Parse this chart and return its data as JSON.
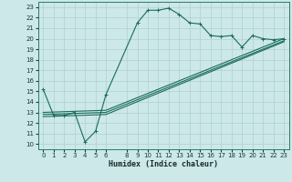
{
  "xlabel": "Humidex (Indice chaleur)",
  "xlim": [
    -0.5,
    23.5
  ],
  "ylim": [
    9.5,
    23.5
  ],
  "yticks": [
    10,
    11,
    12,
    13,
    14,
    15,
    16,
    17,
    18,
    19,
    20,
    21,
    22,
    23
  ],
  "xticks": [
    0,
    1,
    2,
    3,
    4,
    5,
    6,
    8,
    9,
    10,
    11,
    12,
    13,
    14,
    15,
    16,
    17,
    18,
    19,
    20,
    21,
    22,
    23
  ],
  "bg_color": "#cce8e8",
  "line_color": "#1a6b5a",
  "grid_color": "#b0d0d0",
  "lines": [
    {
      "x": [
        0,
        1,
        2,
        3,
        4,
        5,
        6,
        9,
        10,
        11,
        12,
        13,
        14,
        15,
        16,
        17,
        18,
        19,
        20,
        21,
        22,
        23
      ],
      "y": [
        15.2,
        12.7,
        12.7,
        13.0,
        10.2,
        11.2,
        14.7,
        21.5,
        22.7,
        22.7,
        22.9,
        22.3,
        21.5,
        21.4,
        20.3,
        20.2,
        20.3,
        19.2,
        20.3,
        20.0,
        19.9,
        20.0
      ]
    },
    {
      "x": [
        0,
        6,
        23
      ],
      "y": [
        13.0,
        13.2,
        20.0
      ],
      "has_markers": false
    },
    {
      "x": [
        0,
        6,
        23
      ],
      "y": [
        12.8,
        13.0,
        19.8
      ],
      "has_markers": false
    },
    {
      "x": [
        0,
        6,
        23
      ],
      "y": [
        12.6,
        12.8,
        19.7
      ],
      "has_markers": false
    }
  ]
}
